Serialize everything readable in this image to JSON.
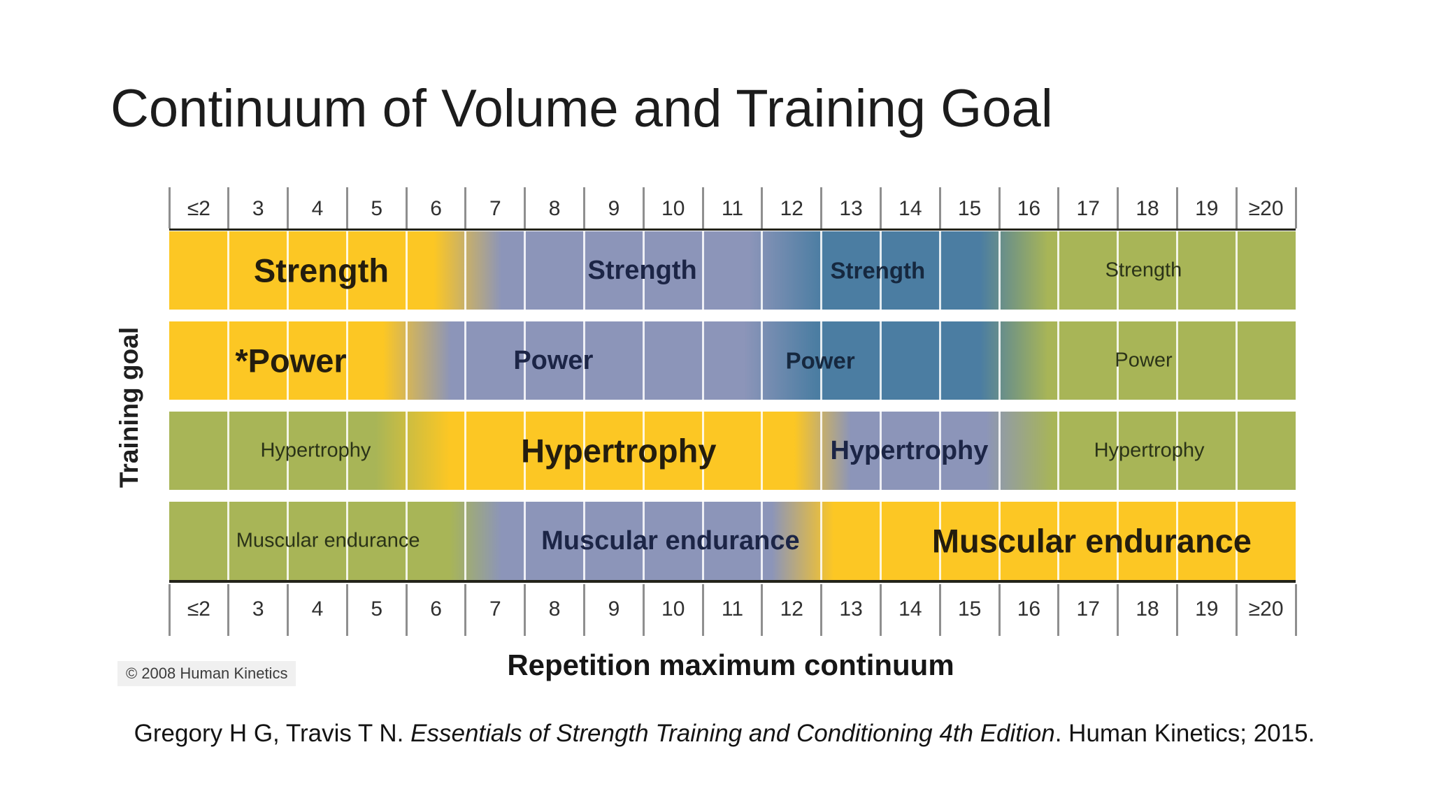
{
  "slide": {
    "title": "Continuum of Volume and Training Goal",
    "citation": {
      "prefix": "Gregory H G, Travis T N. ",
      "italic": "Essentials of Strength Training and Conditioning 4th Edition",
      "suffix": ". Human Kinetics; 2015."
    }
  },
  "chart_data": {
    "type": "heatmap",
    "title": "Continuum of Volume and Training Goal",
    "x_label": "Repetition maximum continuum",
    "y_label": "Training goal",
    "x_ticks": [
      "≤2",
      "3",
      "4",
      "5",
      "6",
      "7",
      "8",
      "9",
      "10",
      "11",
      "12",
      "13",
      "14",
      "15",
      "16",
      "17",
      "18",
      "19",
      "≥20"
    ],
    "axis_note": "identical tick row shown above and below the bars",
    "copyright": "© 2008 Human Kinetics",
    "legend": "emphasis tiers: maximum (yellow, largest bold label) → high (periwinkle) → moderate (steel blue) → low (olive, smallest label)",
    "palette": {
      "maximum": "#FCC724",
      "high": "#8C95B9",
      "moderate": "#4B7DA2",
      "low": "#A8B557"
    },
    "ink": {
      "maximum": "#241D0E",
      "high": "#1C2546",
      "moderate": "#16283F",
      "low": "#2B3318"
    },
    "rows": [
      {
        "goal": "Strength",
        "segments": [
          {
            "emphasis": "maximum",
            "rm_range": "≤2–6",
            "span_pct": [
              0,
              23.5
            ]
          },
          {
            "emphasis": "high",
            "rm_range": "7–11",
            "span_pct": [
              29.5,
              51.5
            ]
          },
          {
            "emphasis": "moderate",
            "rm_range": "12–15",
            "span_pct": [
              58,
              72
            ]
          },
          {
            "emphasis": "low",
            "rm_range": "16–≥20",
            "span_pct": [
              78,
              100
            ]
          }
        ],
        "labels": [
          {
            "text": "Strength",
            "emphasis": "maximum",
            "x_pct": 13.5
          },
          {
            "text": "Strength",
            "emphasis": "high",
            "x_pct": 42.0
          },
          {
            "text": "Strength",
            "emphasis": "moderate",
            "x_pct": 62.9
          },
          {
            "text": "Strength",
            "emphasis": "low",
            "x_pct": 86.5
          }
        ]
      },
      {
        "goal": "Power",
        "segments": [
          {
            "emphasis": "maximum",
            "rm_range": "≤2–5",
            "span_pct": [
              0,
              19
            ]
          },
          {
            "emphasis": "high",
            "rm_range": "6–11",
            "span_pct": [
              25,
              51
            ]
          },
          {
            "emphasis": "moderate",
            "rm_range": "12–15",
            "span_pct": [
              57.5,
              72
            ]
          },
          {
            "emphasis": "low",
            "rm_range": "16–≥20",
            "span_pct": [
              78,
              100
            ]
          }
        ],
        "labels": [
          {
            "text": "*Power",
            "emphasis": "maximum",
            "x_pct": 10.8
          },
          {
            "text": "Power",
            "emphasis": "high",
            "x_pct": 34.1
          },
          {
            "text": "Power",
            "emphasis": "moderate",
            "x_pct": 57.8
          },
          {
            "text": "Power",
            "emphasis": "low",
            "x_pct": 86.5
          }
        ]
      },
      {
        "goal": "Hypertrophy",
        "segments": [
          {
            "emphasis": "low",
            "rm_range": "≤2–5",
            "span_pct": [
              0,
              18.3
            ]
          },
          {
            "emphasis": "maximum",
            "rm_range": "6–12",
            "span_pct": [
              24.9,
              55.5
            ]
          },
          {
            "emphasis": "high",
            "rm_range": "13–15",
            "span_pct": [
              60.5,
              72.5
            ]
          },
          {
            "emphasis": "low",
            "rm_range": "16–≥20",
            "span_pct": [
              78.5,
              100
            ]
          }
        ],
        "labels": [
          {
            "text": "Hypertrophy",
            "emphasis": "low",
            "x_pct": 13.0
          },
          {
            "text": "Hypertrophy",
            "emphasis": "maximum",
            "x_pct": 39.9
          },
          {
            "text": "Hypertrophy",
            "emphasis": "high",
            "x_pct": 65.7
          },
          {
            "text": "Hypertrophy",
            "emphasis": "low",
            "x_pct": 87.0
          }
        ]
      },
      {
        "goal": "Muscular endurance",
        "segments": [
          {
            "emphasis": "low",
            "rm_range": "≤2–6",
            "span_pct": [
              0,
              24.9
            ]
          },
          {
            "emphasis": "high",
            "rm_range": "7–12",
            "span_pct": [
              29.5,
              53.5
            ]
          },
          {
            "emphasis": "maximum",
            "rm_range": "13–≥20",
            "span_pct": [
              59,
              100
            ]
          }
        ],
        "labels": [
          {
            "text": "Muscular endurance",
            "emphasis": "low",
            "x_pct": 14.1
          },
          {
            "text": "Muscular endurance",
            "emphasis": "high",
            "x_pct": 44.5
          },
          {
            "text": "Muscular endurance",
            "emphasis": "maximum",
            "x_pct": 81.9
          }
        ]
      }
    ]
  }
}
